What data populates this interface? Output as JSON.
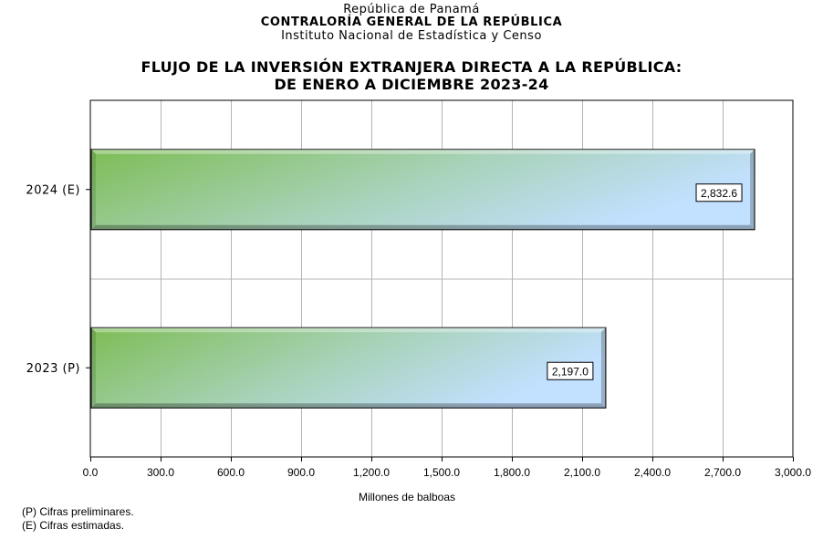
{
  "header": {
    "line1": "República de Panamá",
    "line2": "CONTRALORÍA GENERAL DE LA REPÚBLICA",
    "line3": "Instituto Nacional de Estadística y Censo"
  },
  "footnotes": [
    "(P) Cifras preliminares.",
    "(E) Cifras estimadas."
  ],
  "colors": {
    "bar_start": "#7dbd55",
    "bar_end": "#c2e0ff",
    "grid": "#b4b4b4"
  },
  "chart_data": {
    "type": "bar",
    "orientation": "horizontal",
    "title": [
      "FLUJO DE LA INVERSIÓN EXTRANJERA DIRECTA A LA REPÚBLICA:",
      "DE ENERO A DICIEMBRE 2023-24"
    ],
    "categories": [
      "2024 (E)",
      "2023 (P)"
    ],
    "values": [
      2832.6,
      2197.0
    ],
    "value_labels": [
      "2,832.6",
      "2,197.0"
    ],
    "xlabel": "Millones de balboas",
    "ylabel": "",
    "xlim": [
      0,
      3000
    ],
    "xticks": [
      0,
      300,
      600,
      900,
      1200,
      1500,
      1800,
      2100,
      2400,
      2700,
      3000
    ],
    "xtick_labels": [
      "0.0",
      "300.0",
      "600.0",
      "900.0",
      "1,200.0",
      "1,500.0",
      "1,800.0",
      "2,100.0",
      "2,400.0",
      "2,700.0",
      "3,000.0"
    ],
    "grid": true,
    "legend": "none"
  }
}
